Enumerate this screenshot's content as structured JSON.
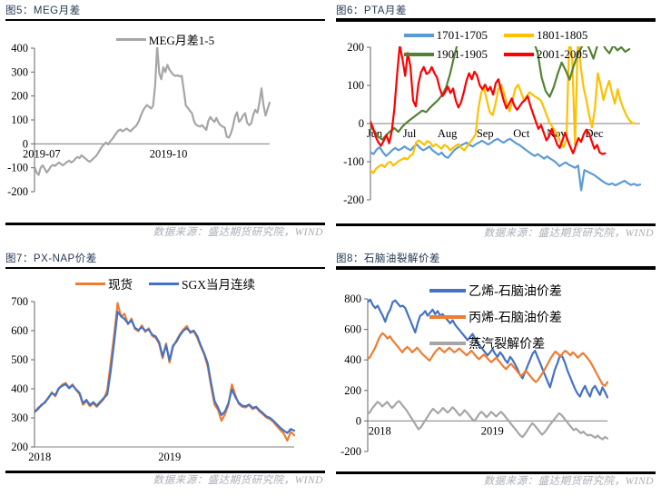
{
  "source_note": "数据来源：盛达期货研究院，WIND",
  "chart_data": [
    {
      "type": "line",
      "title": "图5：MEG月差",
      "source": "数据来源：盛达期货研究院，WIND",
      "ylim": [
        -200,
        400
      ],
      "yticks": [
        -200,
        -100,
        0,
        100,
        200,
        300,
        400
      ],
      "baseline": 0,
      "grid": "zero-line-only",
      "legend_position": "top-center",
      "xticks": [
        {
          "label": "2019-07",
          "pos": 0.03
        },
        {
          "label": "2019-10",
          "pos": 0.57
        }
      ],
      "legend_rows": [
        [
          0
        ]
      ],
      "series": [
        {
          "name": "MEG月差1-5",
          "color": "#A6A6A6",
          "values": [
            -95,
            -120,
            -130,
            -100,
            -90,
            -105,
            -120,
            -108,
            -95,
            -88,
            -92,
            -85,
            -78,
            -85,
            -90,
            -82,
            -75,
            -70,
            -78,
            -72,
            -62,
            -55,
            -60,
            -48,
            -55,
            -62,
            -70,
            -75,
            -68,
            -60,
            -52,
            -40,
            -25,
            -12,
            -2,
            6,
            -3,
            10,
            20,
            32,
            45,
            55,
            60,
            52,
            58,
            64,
            58,
            52,
            62,
            70,
            78,
            95,
            118,
            138,
            152,
            162,
            155,
            148,
            158,
            245,
            408,
            295,
            270,
            320,
            300,
            330,
            310,
            298,
            288,
            284,
            286,
            282,
            284,
            225,
            160,
            150,
            138,
            128,
            95,
            80,
            75,
            72,
            78,
            68,
            58,
            95,
            112,
            100,
            92,
            108,
            88,
            78,
            72,
            68,
            30,
            26,
            42,
            72,
            112,
            132,
            92,
            102,
            118,
            128,
            88,
            78,
            86,
            122,
            142,
            130,
            172,
            232,
            162,
            118,
            145,
            172
          ]
        }
      ]
    },
    {
      "type": "line",
      "title": "图6：PTA月差",
      "source": "数据来源：盛达期货研究院，WIND",
      "ylim": [
        -200,
        200
      ],
      "yticks": [
        -200,
        -100,
        0,
        100,
        200
      ],
      "baseline": 0,
      "grid": "zero-line-only",
      "legend_position": "top-center",
      "xticks": [
        {
          "label": "Jun",
          "pos": 0.015
        },
        {
          "label": "Jul",
          "pos": 0.145
        },
        {
          "label": "Aug",
          "pos": 0.285
        },
        {
          "label": "Sep",
          "pos": 0.425
        },
        {
          "label": "Oct",
          "pos": 0.56
        },
        {
          "label": "Nov",
          "pos": 0.69
        },
        {
          "label": "Dec",
          "pos": 0.83
        }
      ],
      "legend_rows": [
        [
          0,
          1
        ],
        [
          2,
          3
        ]
      ],
      "series": [
        {
          "name": "1701-1705",
          "color": "#5B9BD5",
          "values": [
            -75,
            -80,
            -68,
            -62,
            -75,
            -85,
            -78,
            -70,
            -64,
            -70,
            -66,
            -60,
            -66,
            -70,
            -60,
            -55,
            -64,
            -70,
            -66,
            -60,
            -70,
            -76,
            -82,
            -76,
            -86,
            -90,
            -80,
            -70,
            -64,
            -58,
            -54,
            -50,
            -56,
            -60,
            -54,
            -50,
            -45,
            -50,
            -55,
            -50,
            -44,
            -40,
            -46,
            -50,
            -44,
            -40,
            -46,
            -52,
            -56,
            -62,
            -68,
            -74,
            -80,
            -85,
            -80,
            -86,
            -92,
            -86,
            -92,
            -97,
            -103,
            -112,
            -106,
            -102,
            -108,
            -112,
            -116,
            -110,
            -175,
            -122,
            -126,
            -130,
            -134,
            -140,
            -146,
            -152,
            -157,
            -160,
            -157,
            -162,
            -158,
            -154,
            -150,
            -156,
            -161,
            -158,
            -162,
            -160
          ]
        },
        {
          "name": "1801-1805",
          "color": "#FFC000",
          "span": [
            0,
            0.98
          ],
          "values": [
            -122,
            -130,
            -118,
            -112,
            -108,
            -114,
            -104,
            -100,
            -110,
            -104,
            -98,
            -94,
            -90,
            -94,
            -84,
            -80,
            -50,
            -44,
            -50,
            -56,
            -46,
            -50,
            -60,
            -54,
            -60,
            -66,
            -56,
            -60,
            -70,
            -64,
            -58,
            -54,
            -64,
            -70,
            -60,
            -50,
            -40,
            -28,
            40,
            82,
            92,
            60,
            30,
            22,
            52,
            90,
            102,
            80,
            52,
            32,
            62,
            92,
            102,
            82,
            62,
            72,
            82,
            76,
            70,
            66,
            60,
            42,
            22,
            2,
            -8,
            -20,
            -32,
            -52,
            -62,
            -42,
            232,
            170,
            -55,
            228,
            150,
            95,
            60,
            20,
            -10,
            40,
            132,
            100,
            62,
            90,
            112,
            80,
            52,
            90,
            60,
            40,
            22,
            10,
            2,
            0
          ]
        },
        {
          "name": "1901-1905",
          "color": "#548235",
          "span": [
            0,
            0.96
          ],
          "values": [
            -8,
            -20,
            -35,
            -42,
            -30,
            -20,
            -12,
            -22,
            -8,
            2,
            10,
            18,
            26,
            34,
            30,
            42,
            52,
            62,
            75,
            95,
            130,
            175,
            215,
            260,
            300,
            330,
            350,
            360,
            355,
            345,
            335,
            325,
            315,
            305,
            295,
            285,
            275,
            265,
            255,
            245,
            235,
            215,
            185,
            120,
            85,
            70,
            95,
            130,
            160,
            140,
            115,
            150,
            180,
            200,
            215,
            195,
            170,
            205,
            218,
            196,
            184,
            205,
            192,
            200,
            188,
            195
          ]
        },
        {
          "name": "2001-2005",
          "color": "#FF0000",
          "span": [
            0,
            0.87
          ],
          "values": [
            5,
            -12,
            -35,
            -50,
            -58,
            -45,
            -30,
            -52,
            -20,
            40,
            130,
            205,
            170,
            125,
            185,
            150,
            60,
            45,
            105,
            135,
            148,
            130,
            134,
            148,
            132,
            120,
            92,
            72,
            82,
            97,
            80,
            92,
            60,
            42,
            56,
            82,
            112,
            132,
            116,
            136,
            126,
            100,
            90,
            102,
            86,
            96,
            76,
            106,
            116,
            86,
            60,
            40,
            52,
            66,
            46,
            36,
            46,
            56,
            62,
            72,
            46,
            26,
            6,
            -14,
            -4,
            -24,
            -44,
            -34,
            -14,
            -34,
            -54,
            -64,
            -44,
            -24,
            -44,
            -62,
            -78,
            -58,
            -38,
            -48,
            -28,
            -16,
            -26,
            -46,
            -66,
            -56,
            -76,
            -80,
            -78
          ]
        }
      ]
    },
    {
      "type": "line",
      "title": "图7：PX-NAP价差",
      "source": "数据来源：盛达期货研究院，WIND",
      "ylim": [
        200,
        700
      ],
      "yticks": [
        200,
        300,
        400,
        500,
        600,
        700
      ],
      "baseline": 200,
      "grid": "none",
      "legend_position": "top-center",
      "xticks": [
        {
          "label": "2018",
          "pos": 0.02
        },
        {
          "label": "2019",
          "pos": 0.52
        }
      ],
      "legend_rows": [
        [
          0,
          1
        ]
      ],
      "series": [
        {
          "name": "现货",
          "color": "#ED7D31",
          "values": [
            320,
            334,
            342,
            355,
            368,
            388,
            374,
            400,
            414,
            420,
            404,
            415,
            396,
            382,
            345,
            358,
            340,
            350,
            338,
            352,
            365,
            395,
            490,
            585,
            695,
            648,
            658,
            622,
            642,
            606,
            598,
            618,
            596,
            608,
            582,
            575,
            555,
            505,
            556,
            490,
            544,
            566,
            588,
            604,
            616,
            592,
            598,
            576,
            546,
            518,
            478,
            408,
            345,
            328,
            290,
            312,
            344,
            415,
            378,
            348,
            338,
            336,
            344,
            330,
            336,
            322,
            312,
            301,
            296,
            286,
            272,
            258,
            246,
            222,
            252,
            240
          ]
        },
        {
          "name": "SGX当月连续",
          "color": "#4472C4",
          "values": [
            320,
            330,
            345,
            352,
            370,
            385,
            378,
            402,
            410,
            416,
            402,
            412,
            398,
            386,
            350,
            362,
            344,
            354,
            342,
            356,
            368,
            380,
            460,
            560,
            665,
            650,
            640,
            625,
            635,
            610,
            602,
            612,
            600,
            604,
            586,
            580,
            560,
            512,
            550,
            498,
            548,
            562,
            584,
            600,
            608,
            596,
            600,
            582,
            550,
            522,
            488,
            420,
            358,
            335,
            310,
            322,
            350,
            398,
            372,
            352,
            342,
            340,
            346,
            334,
            338,
            326,
            316,
            305,
            300,
            290,
            278,
            266,
            256,
            248,
            262,
            256
          ]
        }
      ]
    },
    {
      "type": "line",
      "title": "图8：石脑油裂解价差",
      "source": "数据来源：盛达期货研究院，WIND",
      "ylim": [
        -200,
        800
      ],
      "yticks": [
        -200,
        0,
        200,
        400,
        600,
        800
      ],
      "baseline": 0,
      "grid": "zero-line-only",
      "legend_position": "top-center-column",
      "xticks": [
        {
          "label": "2018",
          "pos": 0.05
        },
        {
          "label": "2019",
          "pos": 0.52
        }
      ],
      "legend_rows": [
        [
          0
        ],
        [
          1
        ],
        [
          2
        ]
      ],
      "series": [
        {
          "name": "乙烯-石脑油价差",
          "color": "#4472C4",
          "values": [
            780,
            795,
            760,
            740,
            755,
            720,
            690,
            650,
            700,
            730,
            780,
            790,
            770,
            750,
            755,
            740,
            700,
            660,
            620,
            580,
            640,
            690,
            700,
            720,
            690,
            710,
            730,
            700,
            720,
            690,
            700,
            680,
            660,
            640,
            660,
            630,
            610,
            590,
            570,
            550,
            530,
            550,
            570,
            540,
            510,
            490,
            470,
            450,
            430,
            450,
            470,
            440,
            420,
            450,
            430,
            400,
            380,
            420,
            400,
            370,
            340,
            300,
            280,
            320,
            360,
            400,
            440,
            460,
            420,
            380,
            340,
            300,
            260,
            220,
            280,
            340,
            380,
            430,
            420,
            380,
            330,
            290,
            250,
            210,
            180,
            160,
            200,
            230,
            190,
            160,
            210,
            230,
            200,
            170,
            220,
            190,
            155
          ]
        },
        {
          "name": "丙烯-石脑油价差",
          "color": "#ED7D31",
          "values": [
            405,
            420,
            450,
            480,
            520,
            555,
            575,
            560,
            540,
            555,
            530,
            510,
            490,
            470,
            450,
            470,
            485,
            470,
            450,
            465,
            480,
            460,
            440,
            425,
            410,
            395,
            420,
            445,
            465,
            480,
            465,
            450,
            465,
            480,
            465,
            450,
            460,
            475,
            460,
            445,
            430,
            445,
            460,
            440,
            420,
            405,
            420,
            435,
            420,
            400,
            385,
            400,
            415,
            395,
            375,
            355,
            340,
            360,
            375,
            355,
            335,
            315,
            295,
            310,
            330,
            310,
            290,
            270,
            255,
            270,
            295,
            320,
            350,
            380,
            410,
            435,
            455,
            440,
            420,
            445,
            460,
            445,
            430,
            450,
            435,
            415,
            430,
            445,
            430,
            410,
            390,
            360,
            330,
            300,
            270,
            240,
            230,
            255
          ]
        },
        {
          "name": "蒸汽裂解价差",
          "color": "#A6A6A6",
          "values": [
            45,
            60,
            85,
            105,
            125,
            115,
            95,
            110,
            125,
            105,
            85,
            100,
            120,
            130,
            110,
            90,
            70,
            45,
            20,
            -5,
            -30,
            -55,
            -40,
            -15,
            10,
            35,
            60,
            80,
            65,
            50,
            65,
            85,
            70,
            55,
            70,
            90,
            75,
            55,
            35,
            50,
            70,
            55,
            35,
            15,
            0,
            20,
            45,
            60,
            45,
            25,
            40,
            60,
            45,
            30,
            45,
            60,
            45,
            25,
            5,
            -15,
            -35,
            -55,
            -75,
            -95,
            -105,
            -85,
            -60,
            -35,
            -15,
            -30,
            -50,
            -70,
            -90,
            -75,
            -55,
            -30,
            -10,
            10,
            30,
            50,
            40,
            20,
            0,
            -20,
            -40,
            -60,
            -50,
            -65,
            -80,
            -70,
            -85,
            -95,
            -90,
            -100,
            -110,
            -95,
            -110,
            -120,
            -105,
            -115
          ]
        }
      ]
    }
  ]
}
